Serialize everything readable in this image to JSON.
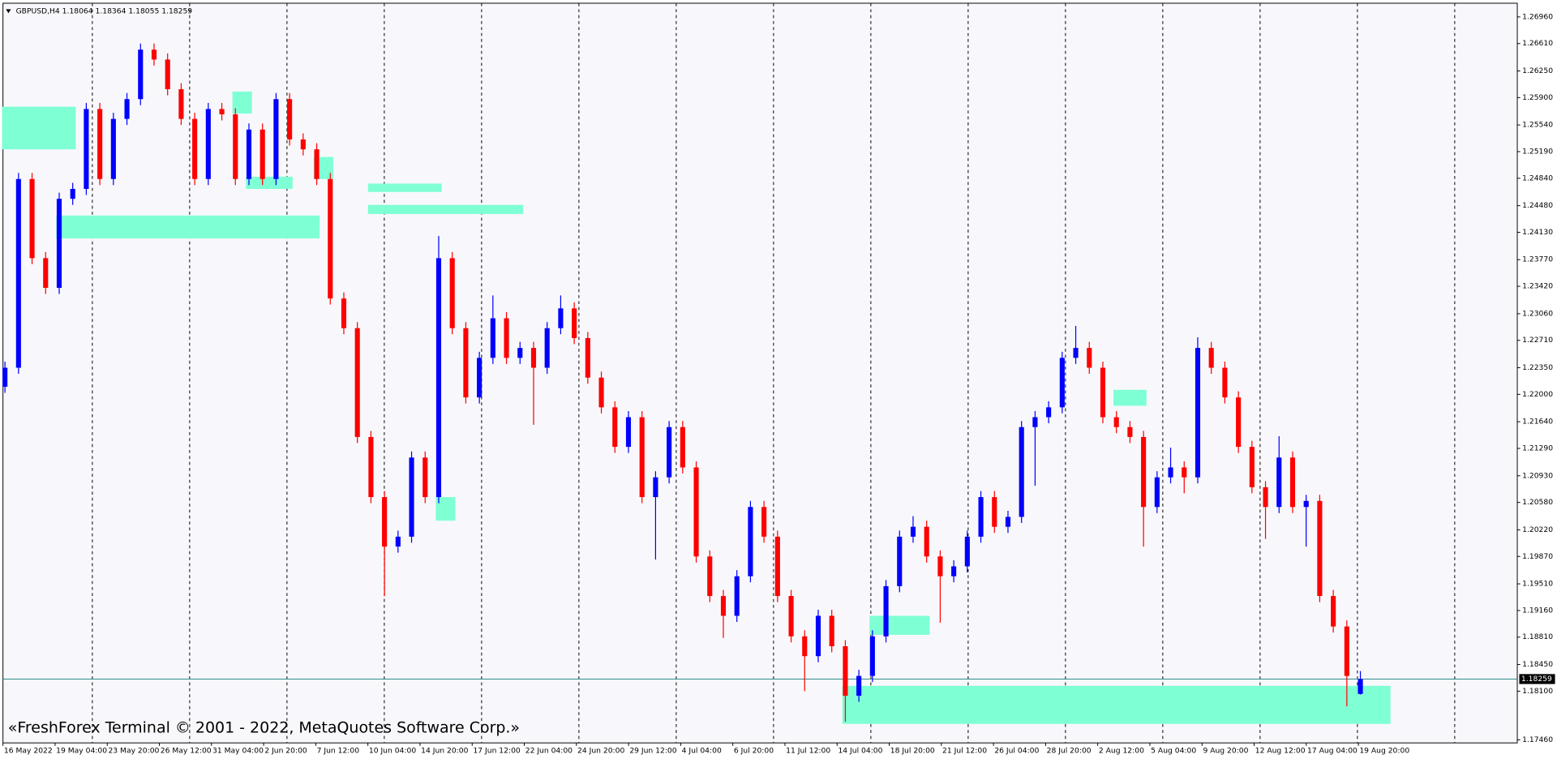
{
  "chart_data": {
    "type": "candlestick",
    "title": "GBPUSD,H4  1.18064 1.18364 1.18055 1.18259",
    "watermark": "«FreshForex Terminal © 2001 - 2022, MetaQuotes Software Corp.»",
    "up_color": "#0000ff",
    "down_color": "#ff0000",
    "zone_color": "#7fffd4",
    "price_line_color": "#2e8b8b",
    "ylim": [
      1.1742,
      1.2714
    ],
    "yticks": [
      {
        "value": 1.2696,
        "label": "1.26960"
      },
      {
        "value": 1.2661,
        "label": "1.26610"
      },
      {
        "value": 1.2625,
        "label": "1.26250"
      },
      {
        "value": 1.259,
        "label": "1.25900"
      },
      {
        "value": 1.2554,
        "label": "1.25540"
      },
      {
        "value": 1.2519,
        "label": "1.25190"
      },
      {
        "value": 1.2484,
        "label": "1.24840"
      },
      {
        "value": 1.2448,
        "label": "1.24480"
      },
      {
        "value": 1.2413,
        "label": "1.24130"
      },
      {
        "value": 1.2377,
        "label": "1.23770"
      },
      {
        "value": 1.2342,
        "label": "1.23420"
      },
      {
        "value": 1.2306,
        "label": "1.23060"
      },
      {
        "value": 1.2271,
        "label": "1.22710"
      },
      {
        "value": 1.2235,
        "label": "1.22350"
      },
      {
        "value": 1.22,
        "label": "1.22000"
      },
      {
        "value": 1.2164,
        "label": "1.21640"
      },
      {
        "value": 1.2129,
        "label": "1.21290"
      },
      {
        "value": 1.2093,
        "label": "1.20930"
      },
      {
        "value": 1.2058,
        "label": "1.20580"
      },
      {
        "value": 1.2022,
        "label": "1.20220"
      },
      {
        "value": 1.1987,
        "label": "1.19870"
      },
      {
        "value": 1.1951,
        "label": "1.19510"
      },
      {
        "value": 1.1916,
        "label": "1.19160"
      },
      {
        "value": 1.1881,
        "label": "1.18810"
      },
      {
        "value": 1.1845,
        "label": "1.18450"
      },
      {
        "value": 1.181,
        "label": "1.18100"
      },
      {
        "value": 1.1746,
        "label": "1.17460"
      }
    ],
    "last_price": {
      "value": 1.18259,
      "label": "1.18259"
    },
    "x_labels": [
      "16 May 2022",
      "19 May 04:00",
      "23 May 20:00",
      "26 May 12:00",
      "31 May 04:00",
      "2 Jun 20:00",
      "7 Jun 12:00",
      "10 Jun 04:00",
      "14 Jun 20:00",
      "17 Jun 12:00",
      "22 Jun 04:00",
      "24 Jun 20:00",
      "29 Jun 12:00",
      "4 Jul 04:00",
      "6 Jul 20:00",
      "11 Jul 12:00",
      "14 Jul 04:00",
      "18 Jul 20:00",
      "21 Jul 12:00",
      "26 Jul 04:00",
      "28 Jul 20:00",
      "2 Aug 12:00",
      "5 Aug 04:00",
      "9 Aug 20:00",
      "12 Aug 12:00",
      "17 Aug 04:00",
      "19 Aug 20:00"
    ],
    "candles": [
      [
        1.221,
        1.2243,
        1.2202,
        1.2235
      ],
      [
        1.2235,
        1.2491,
        1.2227,
        1.2483
      ],
      [
        1.2483,
        1.2491,
        1.2371,
        1.2379
      ],
      [
        1.2379,
        1.2387,
        1.2332,
        1.234
      ],
      [
        1.234,
        1.2465,
        1.2332,
        1.2457
      ],
      [
        1.2457,
        1.2478,
        1.2449,
        1.247
      ],
      [
        1.247,
        1.2583,
        1.2462,
        1.2575
      ],
      [
        1.2575,
        1.2583,
        1.2475,
        1.2483
      ],
      [
        1.2483,
        1.257,
        1.2475,
        1.2562
      ],
      [
        1.2562,
        1.2596,
        1.2554,
        1.2588
      ],
      [
        1.2588,
        1.2661,
        1.258,
        1.2653
      ],
      [
        1.2653,
        1.2661,
        1.2632,
        1.264
      ],
      [
        1.264,
        1.2648,
        1.2593,
        1.2601
      ],
      [
        1.2601,
        1.2609,
        1.2554,
        1.2562
      ],
      [
        1.2562,
        1.257,
        1.2475,
        1.2483
      ],
      [
        1.2483,
        1.2583,
        1.2475,
        1.2575
      ],
      [
        1.2575,
        1.2583,
        1.256,
        1.2568
      ],
      [
        1.2568,
        1.2576,
        1.2475,
        1.2483
      ],
      [
        1.2483,
        1.2556,
        1.2475,
        1.2548
      ],
      [
        1.2548,
        1.2556,
        1.2475,
        1.2483
      ],
      [
        1.2483,
        1.2596,
        1.2475,
        1.2588
      ],
      [
        1.2588,
        1.2596,
        1.2527,
        1.2535
      ],
      [
        1.2535,
        1.2543,
        1.2514,
        1.2522
      ],
      [
        1.2522,
        1.253,
        1.2475,
        1.2483
      ],
      [
        1.2483,
        1.2491,
        1.2318,
        1.2326
      ],
      [
        1.2326,
        1.2334,
        1.2279,
        1.2287
      ],
      [
        1.2287,
        1.2295,
        1.2136,
        1.2144
      ],
      [
        1.2144,
        1.2152,
        1.2057,
        1.2065
      ],
      [
        1.2065,
        1.2073,
        1.1935,
        1.2
      ],
      [
        1.2,
        1.2021,
        1.1992,
        1.2013
      ],
      [
        1.2013,
        1.2125,
        1.2005,
        1.2117
      ],
      [
        1.2117,
        1.2125,
        1.2057,
        1.2065
      ],
      [
        1.2065,
        1.2408,
        1.2057,
        1.2379
      ],
      [
        1.2379,
        1.2387,
        1.2279,
        1.2287
      ],
      [
        1.2287,
        1.2295,
        1.2188,
        1.2196
      ],
      [
        1.2196,
        1.2256,
        1.2188,
        1.2248
      ],
      [
        1.2248,
        1.233,
        1.224,
        1.23
      ],
      [
        1.23,
        1.2308,
        1.224,
        1.2248
      ],
      [
        1.2248,
        1.2269,
        1.224,
        1.2261
      ],
      [
        1.2261,
        1.2269,
        1.216,
        1.2235
      ],
      [
        1.2235,
        1.2295,
        1.2227,
        1.2287
      ],
      [
        1.2287,
        1.233,
        1.2279,
        1.2313
      ],
      [
        1.2313,
        1.2321,
        1.2266,
        1.2274
      ],
      [
        1.2274,
        1.2282,
        1.2214,
        1.2222
      ],
      [
        1.2222,
        1.223,
        1.2175,
        1.2183
      ],
      [
        1.2183,
        1.2191,
        1.2123,
        1.2131
      ],
      [
        1.2131,
        1.2178,
        1.2123,
        1.217
      ],
      [
        1.217,
        1.2178,
        1.2057,
        1.2065
      ],
      [
        1.2065,
        1.2099,
        1.1983,
        1.2091
      ],
      [
        1.2091,
        1.2165,
        1.2083,
        1.2157
      ],
      [
        1.2157,
        1.2165,
        1.2096,
        1.2104
      ],
      [
        1.2104,
        1.2112,
        1.1979,
        1.1987
      ],
      [
        1.1987,
        1.1995,
        1.1927,
        1.1935
      ],
      [
        1.1935,
        1.1943,
        1.188,
        1.1909
      ],
      [
        1.1909,
        1.1969,
        1.1901,
        1.1961
      ],
      [
        1.1961,
        1.206,
        1.1953,
        1.2052
      ],
      [
        1.2052,
        1.206,
        1.2005,
        1.2013
      ],
      [
        1.2013,
        1.2021,
        1.1927,
        1.1935
      ],
      [
        1.1935,
        1.1943,
        1.1874,
        1.1882
      ],
      [
        1.1882,
        1.189,
        1.181,
        1.1856
      ],
      [
        1.1856,
        1.1917,
        1.1848,
        1.1909
      ],
      [
        1.1909,
        1.1917,
        1.1861,
        1.1869
      ],
      [
        1.1869,
        1.1877,
        1.177,
        1.1804
      ],
      [
        1.1804,
        1.1838,
        1.1796,
        1.183
      ],
      [
        1.183,
        1.189,
        1.1822,
        1.1882
      ],
      [
        1.1882,
        1.1956,
        1.1874,
        1.1948
      ],
      [
        1.1948,
        1.2021,
        1.194,
        1.2013
      ],
      [
        1.2013,
        1.204,
        1.2005,
        1.2026
      ],
      [
        1.2026,
        1.2034,
        1.1979,
        1.1987
      ],
      [
        1.1987,
        1.1995,
        1.19,
        1.1961
      ],
      [
        1.1961,
        1.1982,
        1.1953,
        1.1974
      ],
      [
        1.1974,
        1.2021,
        1.1966,
        1.2013
      ],
      [
        1.2013,
        1.2073,
        1.2005,
        1.2065
      ],
      [
        1.2065,
        1.2073,
        1.2018,
        1.2026
      ],
      [
        1.2026,
        1.2047,
        1.2018,
        1.2039
      ],
      [
        1.2039,
        1.2165,
        1.2031,
        1.2157
      ],
      [
        1.2157,
        1.2178,
        1.208,
        1.217
      ],
      [
        1.217,
        1.2191,
        1.2162,
        1.2183
      ],
      [
        1.2183,
        1.2256,
        1.2175,
        1.2248
      ],
      [
        1.2248,
        1.229,
        1.224,
        1.2261
      ],
      [
        1.2261,
        1.2269,
        1.2227,
        1.2235
      ],
      [
        1.2235,
        1.2243,
        1.2162,
        1.217
      ],
      [
        1.217,
        1.2178,
        1.2149,
        1.2157
      ],
      [
        1.2157,
        1.2165,
        1.2136,
        1.2144
      ],
      [
        1.2144,
        1.2152,
        1.2,
        1.2052
      ],
      [
        1.2052,
        1.2099,
        1.2044,
        1.2091
      ],
      [
        1.2091,
        1.213,
        1.2083,
        1.2104
      ],
      [
        1.2104,
        1.2112,
        1.207,
        1.2091
      ],
      [
        1.2091,
        1.2275,
        1.2083,
        1.2261
      ],
      [
        1.2261,
        1.2269,
        1.2227,
        1.2235
      ],
      [
        1.2235,
        1.2243,
        1.2188,
        1.2196
      ],
      [
        1.2196,
        1.2204,
        1.2123,
        1.2131
      ],
      [
        1.2131,
        1.2139,
        1.207,
        1.2078
      ],
      [
        1.2078,
        1.2086,
        1.201,
        1.2052
      ],
      [
        1.2052,
        1.2145,
        1.2044,
        1.2117
      ],
      [
        1.2117,
        1.2125,
        1.2044,
        1.2052
      ],
      [
        1.2052,
        1.2068,
        1.2,
        1.206
      ],
      [
        1.206,
        1.2068,
        1.1927,
        1.1935
      ],
      [
        1.1935,
        1.1943,
        1.1887,
        1.1895
      ],
      [
        1.1895,
        1.1903,
        1.179,
        1.183
      ],
      [
        1.18064,
        1.18364,
        1.18055,
        1.18259
      ]
    ],
    "zones": [
      {
        "from": 0,
        "to": 5,
        "low": 1.2522,
        "high": 1.2578
      },
      {
        "from": 4,
        "to": 23,
        "low": 1.2405,
        "high": 1.2435
      },
      {
        "from": 17,
        "to": 18,
        "low": 1.2569,
        "high": 1.2598
      },
      {
        "from": 18,
        "to": 21,
        "low": 1.247,
        "high": 1.2486
      },
      {
        "from": 23,
        "to": 24,
        "low": 1.2483,
        "high": 1.2512
      },
      {
        "from": 27,
        "to": 32,
        "low": 1.2466,
        "high": 1.2477
      },
      {
        "from": 27,
        "to": 38,
        "low": 1.2437,
        "high": 1.2449
      },
      {
        "from": 32,
        "to": 33,
        "low": 1.2034,
        "high": 1.2065
      },
      {
        "from": 64,
        "to": 68,
        "low": 1.1884,
        "high": 1.1909
      },
      {
        "from": 82,
        "to": 84,
        "low": 1.2185,
        "high": 1.2206
      },
      {
        "from": 62,
        "to": 102,
        "low": 1.1767,
        "high": 1.1817
      }
    ]
  }
}
